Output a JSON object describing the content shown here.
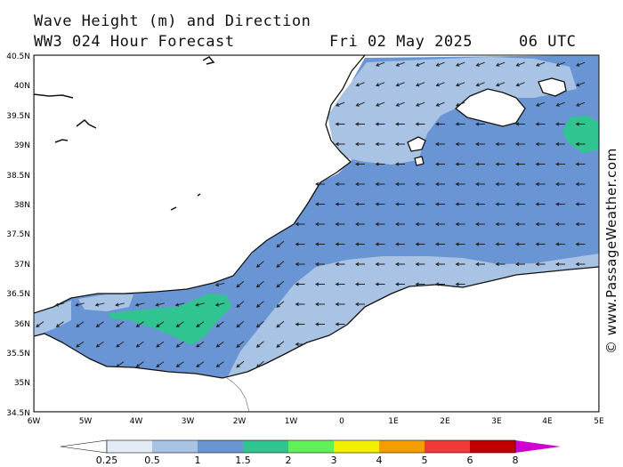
{
  "header": {
    "title": "Wave Height (m) and Direction",
    "model": "WW3 024 Hour Forecast",
    "date": "Fri 02 May 2025",
    "time": "06 UTC"
  },
  "credit": "© www.PassageWeather.com",
  "axes": {
    "lat_labels": [
      "40.5N",
      "40N",
      "39.5N",
      "39N",
      "38.5N",
      "38N",
      "37.5N",
      "37N",
      "36.5N",
      "36N",
      "35.5N",
      "35N",
      "34.5N"
    ],
    "lon_labels": [
      "6W",
      "5W",
      "4W",
      "3W",
      "2W",
      "1W",
      "0",
      "1E",
      "2E",
      "3E",
      "4E",
      "5E"
    ]
  },
  "legend": {
    "ticks": [
      "0.25",
      "0.5",
      "1",
      "1.5",
      "2",
      "3",
      "4",
      "5",
      "6",
      "8"
    ],
    "colors": [
      "#e2ebf6",
      "#a9c3e5",
      "#6a95d4",
      "#2fc490",
      "#5ff05a",
      "#f2f000",
      "#f59d00",
      "#f03a3a",
      "#c00000",
      "#d000d0"
    ]
  },
  "colors": {
    "land": "#ffffff",
    "sea_calm": "#a9c3e5",
    "sea_moderate": "#6a95d4",
    "sea_high": "#2fc490",
    "arrow": "#222222"
  }
}
